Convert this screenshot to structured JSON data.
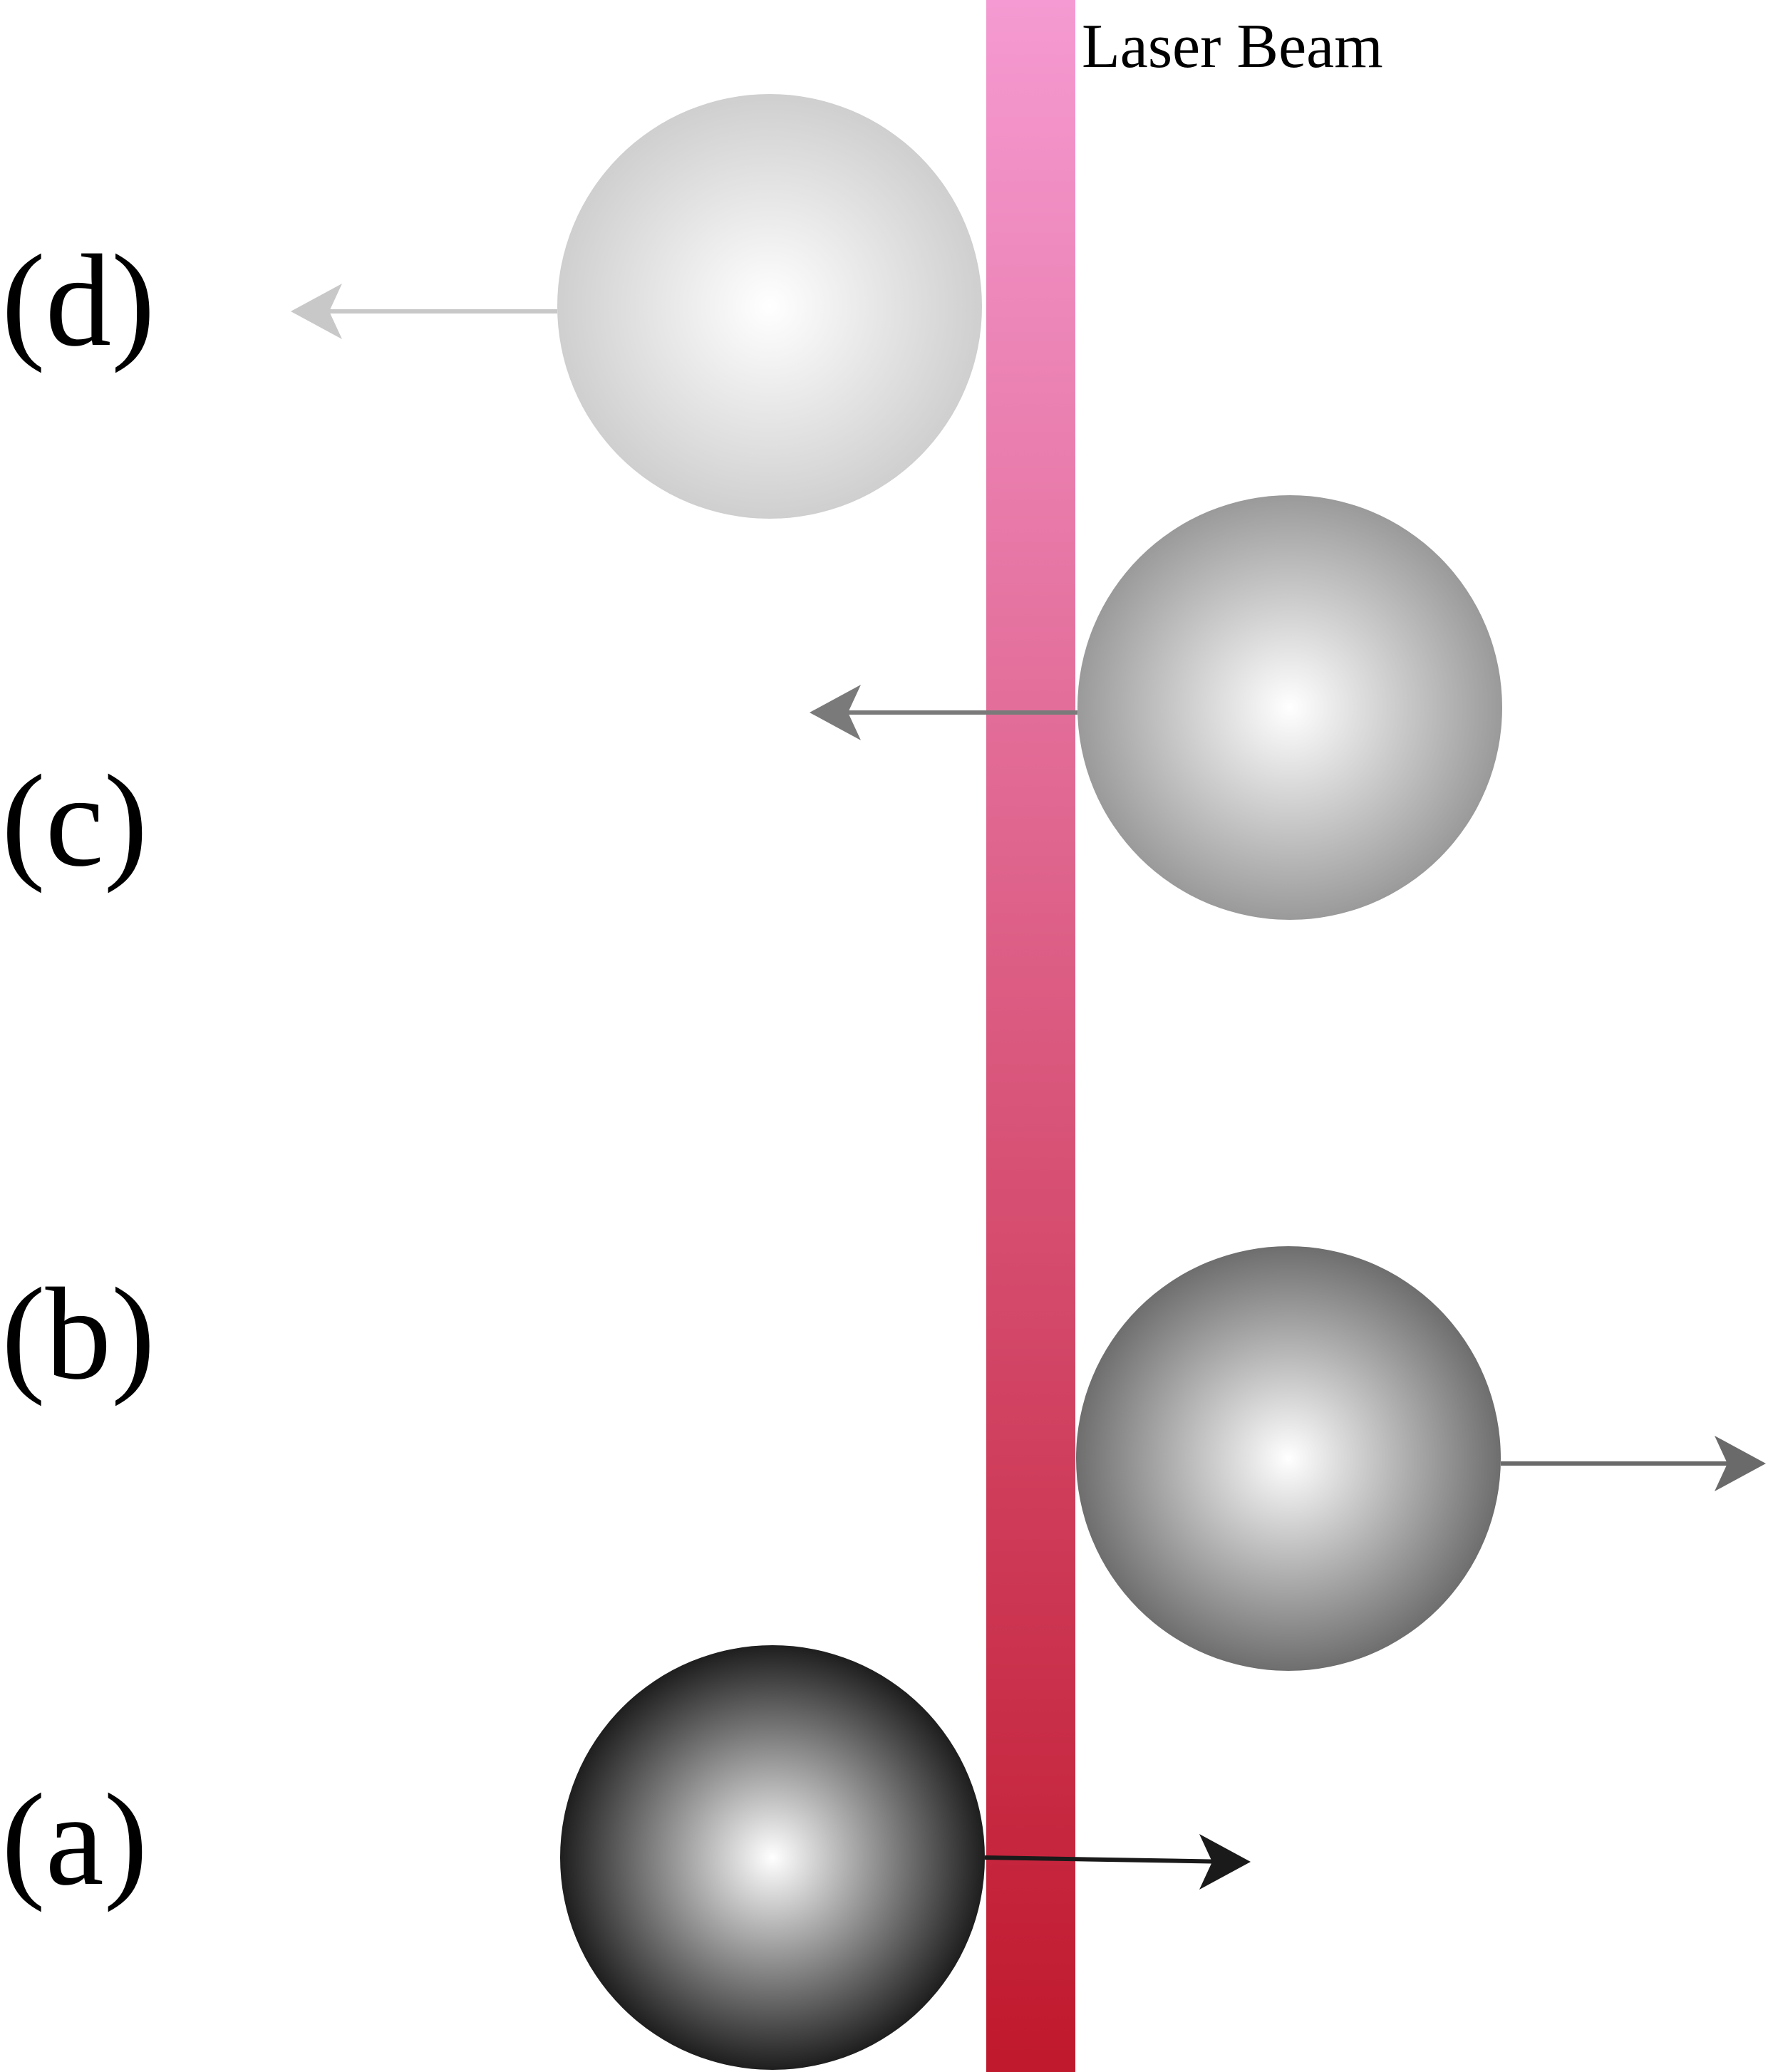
{
  "beam": {
    "label": "Laser Beam",
    "color_top": "#f59ad2",
    "color_bottom": "#c0182c"
  },
  "steps": [
    {
      "id": "a",
      "label": "(a)",
      "sphere_shade": "#1e1e1e",
      "arrow_direction": "right",
      "arrow_color": "#1a1a1a"
    },
    {
      "id": "b",
      "label": "(b)",
      "sphere_shade": "#6e6e6e",
      "arrow_direction": "right",
      "arrow_color": "#6a6a6a"
    },
    {
      "id": "c",
      "label": "(c)",
      "sphere_shade": "#9a9a9a",
      "arrow_direction": "left",
      "arrow_color": "#7a7a7a"
    },
    {
      "id": "d",
      "label": "(d)",
      "sphere_shade": "#cfcfcf",
      "arrow_direction": "left",
      "arrow_color": "#c8c8c8"
    }
  ]
}
